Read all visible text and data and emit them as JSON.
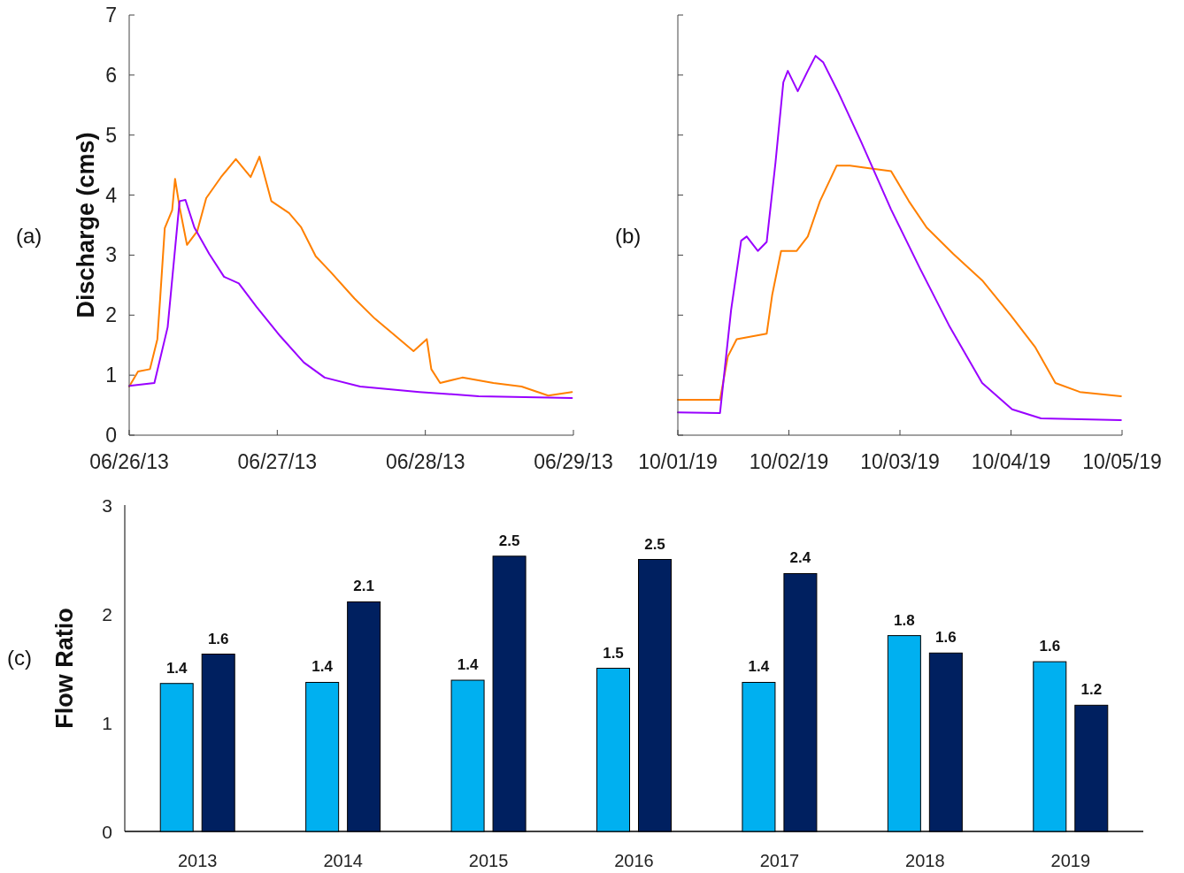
{
  "chart_data": [
    {
      "type": "line",
      "ylabel": "Discharge (cms)",
      "annotations": [
        "(a)"
      ],
      "xlim": [
        "2013-06-26",
        "2013-06-29"
      ],
      "xticks": [
        {
          "value": "2013-06-26",
          "label": "06/26/13"
        },
        {
          "value": "2013-06-27",
          "label": "06/27/13"
        },
        {
          "value": "2013-06-28",
          "label": "06/28/13"
        },
        {
          "value": "2013-06-29",
          "label": "06/29/13"
        }
      ],
      "ylim": [
        0,
        7
      ],
      "yticks": [
        0,
        1,
        2,
        3,
        4,
        5,
        6,
        7
      ],
      "grid": false,
      "series": [
        {
          "color": "#ff8000",
          "x": [
            "2013-06-26T00:00",
            "2013-06-26T01:26",
            "2013-06-26T03:22",
            "2013-06-26T04:34",
            "2013-06-26T05:02",
            "2013-06-26T05:46",
            "2013-06-26T06:58",
            "2013-06-26T07:26",
            "2013-06-26T08:10",
            "2013-06-26T09:22",
            "2013-06-26T11:02",
            "2013-06-26T12:29",
            "2013-06-26T14:53",
            "2013-06-26T17:17",
            "2013-06-26T19:41",
            "2013-06-26T21:07",
            "2013-06-26T23:02",
            "2013-06-27T01:55",
            "2013-06-27T03:50",
            "2013-06-27T06:14",
            "2013-06-27T08:38",
            "2013-06-27T12:29",
            "2013-06-27T15:50",
            "2013-06-27T19:12",
            "2013-06-27T22:05",
            "2013-06-28T00:14",
            "2013-06-28T00:58",
            "2013-06-28T02:24",
            "2013-06-28T06:00",
            "2013-06-28T11:02",
            "2013-06-28T15:36",
            "2013-06-28T19:55",
            "2013-06-28T23:46"
          ],
          "values": [
            0.81,
            1.06,
            1.1,
            1.6,
            2.3,
            3.45,
            3.75,
            4.27,
            3.8,
            3.17,
            3.4,
            3.95,
            4.3,
            4.6,
            4.3,
            4.64,
            3.9,
            3.7,
            3.47,
            2.98,
            2.72,
            2.28,
            1.94,
            1.65,
            1.4,
            1.6,
            1.1,
            0.87,
            0.96,
            0.87,
            0.81,
            0.66,
            0.72
          ]
        },
        {
          "color": "#9900ff",
          "x": [
            "2013-06-26T00:00",
            "2013-06-26T04:05",
            "2013-06-26T06:14",
            "2013-06-26T08:10",
            "2013-06-26T09:07",
            "2013-06-26T10:34",
            "2013-06-26T12:58",
            "2013-06-26T15:22",
            "2013-06-26T17:46",
            "2013-06-26T20:38",
            "2013-06-27T00:29",
            "2013-06-27T04:19",
            "2013-06-27T07:41",
            "2013-06-27T13:26",
            "2013-06-27T23:02",
            "2013-06-28T08:38",
            "2013-06-28T23:46"
          ],
          "values": [
            0.82,
            0.87,
            1.8,
            3.9,
            3.92,
            3.46,
            3.02,
            2.64,
            2.53,
            2.14,
            1.65,
            1.21,
            0.96,
            0.81,
            0.72,
            0.65,
            0.62
          ]
        }
      ]
    },
    {
      "type": "line",
      "annotations": [
        "(b)"
      ],
      "xlim": [
        "2019-10-01",
        "2019-10-05"
      ],
      "xticks": [
        {
          "value": "2019-10-01",
          "label": "10/01/19"
        },
        {
          "value": "2019-10-02",
          "label": "10/02/19"
        },
        {
          "value": "2019-10-03",
          "label": "10/03/19"
        },
        {
          "value": "2019-10-04",
          "label": "10/04/19"
        },
        {
          "value": "2019-10-05",
          "label": "10/05/19"
        }
      ],
      "ylim": [
        0,
        7
      ],
      "yticks": [
        0,
        1,
        2,
        3,
        4,
        5,
        6,
        7
      ],
      "tick_labels": "x",
      "grid": false,
      "series": [
        {
          "color": "#ff8000",
          "x": [
            "2019-10-01T00:00",
            "2019-10-01T09:07",
            "2019-10-01T10:48",
            "2019-10-01T12:43",
            "2019-10-01T19:12",
            "2019-10-01T20:24",
            "2019-10-01T22:19",
            "2019-10-02T01:41",
            "2019-10-02T04:05",
            "2019-10-02T06:43",
            "2019-10-02T10:19",
            "2019-10-02T13:12",
            "2019-10-02T17:02",
            "2019-10-02T22:05",
            "2019-10-03T01:55",
            "2019-10-03T05:46",
            "2019-10-03T11:31",
            "2019-10-03T17:46",
            "2019-10-04T00:00",
            "2019-10-04T05:17",
            "2019-10-04T09:36",
            "2019-10-04T14:53",
            "2019-10-04T23:46"
          ],
          "values": [
            0.59,
            0.59,
            1.31,
            1.6,
            1.69,
            2.34,
            3.07,
            3.07,
            3.31,
            3.9,
            4.49,
            4.49,
            4.45,
            4.4,
            3.9,
            3.46,
            3.02,
            2.58,
            1.99,
            1.46,
            0.87,
            0.72,
            0.65
          ]
        },
        {
          "color": "#9900ff",
          "x": [
            "2019-10-01T00:00",
            "2019-10-01T09:07",
            "2019-10-01T11:31",
            "2019-10-01T13:41",
            "2019-10-01T14:53",
            "2019-10-01T17:17",
            "2019-10-01T19:12",
            "2019-10-01T21:07",
            "2019-10-01T22:48",
            "2019-10-01T23:46",
            "2019-10-02T01:55",
            "2019-10-02T04:05",
            "2019-10-02T05:46",
            "2019-10-02T07:26",
            "2019-10-02T10:34",
            "2019-10-02T15:36",
            "2019-10-02T22:05",
            "2019-10-03T04:19",
            "2019-10-03T10:48",
            "2019-10-03T17:46",
            "2019-10-04T00:14",
            "2019-10-04T06:29",
            "2019-10-04T23:46"
          ],
          "values": [
            0.38,
            0.37,
            2.09,
            3.24,
            3.31,
            3.07,
            3.22,
            4.55,
            5.88,
            6.07,
            5.73,
            6.07,
            6.32,
            6.21,
            5.73,
            4.89,
            3.76,
            2.78,
            1.8,
            0.87,
            0.43,
            0.28,
            0.25
          ]
        }
      ]
    },
    {
      "type": "bar",
      "ylabel": "Flow Ratio",
      "annotations": [
        "(c)"
      ],
      "categories": [
        "2013",
        "2014",
        "2015",
        "2016",
        "2017",
        "2018",
        "2019"
      ],
      "ylim": [
        0,
        3
      ],
      "yticks": [
        0,
        1,
        2,
        3
      ],
      "grid": false,
      "series": [
        {
          "color": "#00b0f0",
          "values": [
            1.36,
            1.37,
            1.39,
            1.5,
            1.37,
            1.8,
            1.56
          ],
          "value_labels": [
            "1.4",
            "1.4",
            "1.4",
            "1.5",
            "1.4",
            "1.8",
            "1.6"
          ]
        },
        {
          "color": "#002060",
          "values": [
            1.63,
            2.11,
            2.53,
            2.5,
            2.37,
            1.64,
            1.16
          ],
          "value_labels": [
            "1.6",
            "2.1",
            "2.5",
            "2.5",
            "2.4",
            "1.6",
            "1.2"
          ]
        }
      ]
    }
  ]
}
